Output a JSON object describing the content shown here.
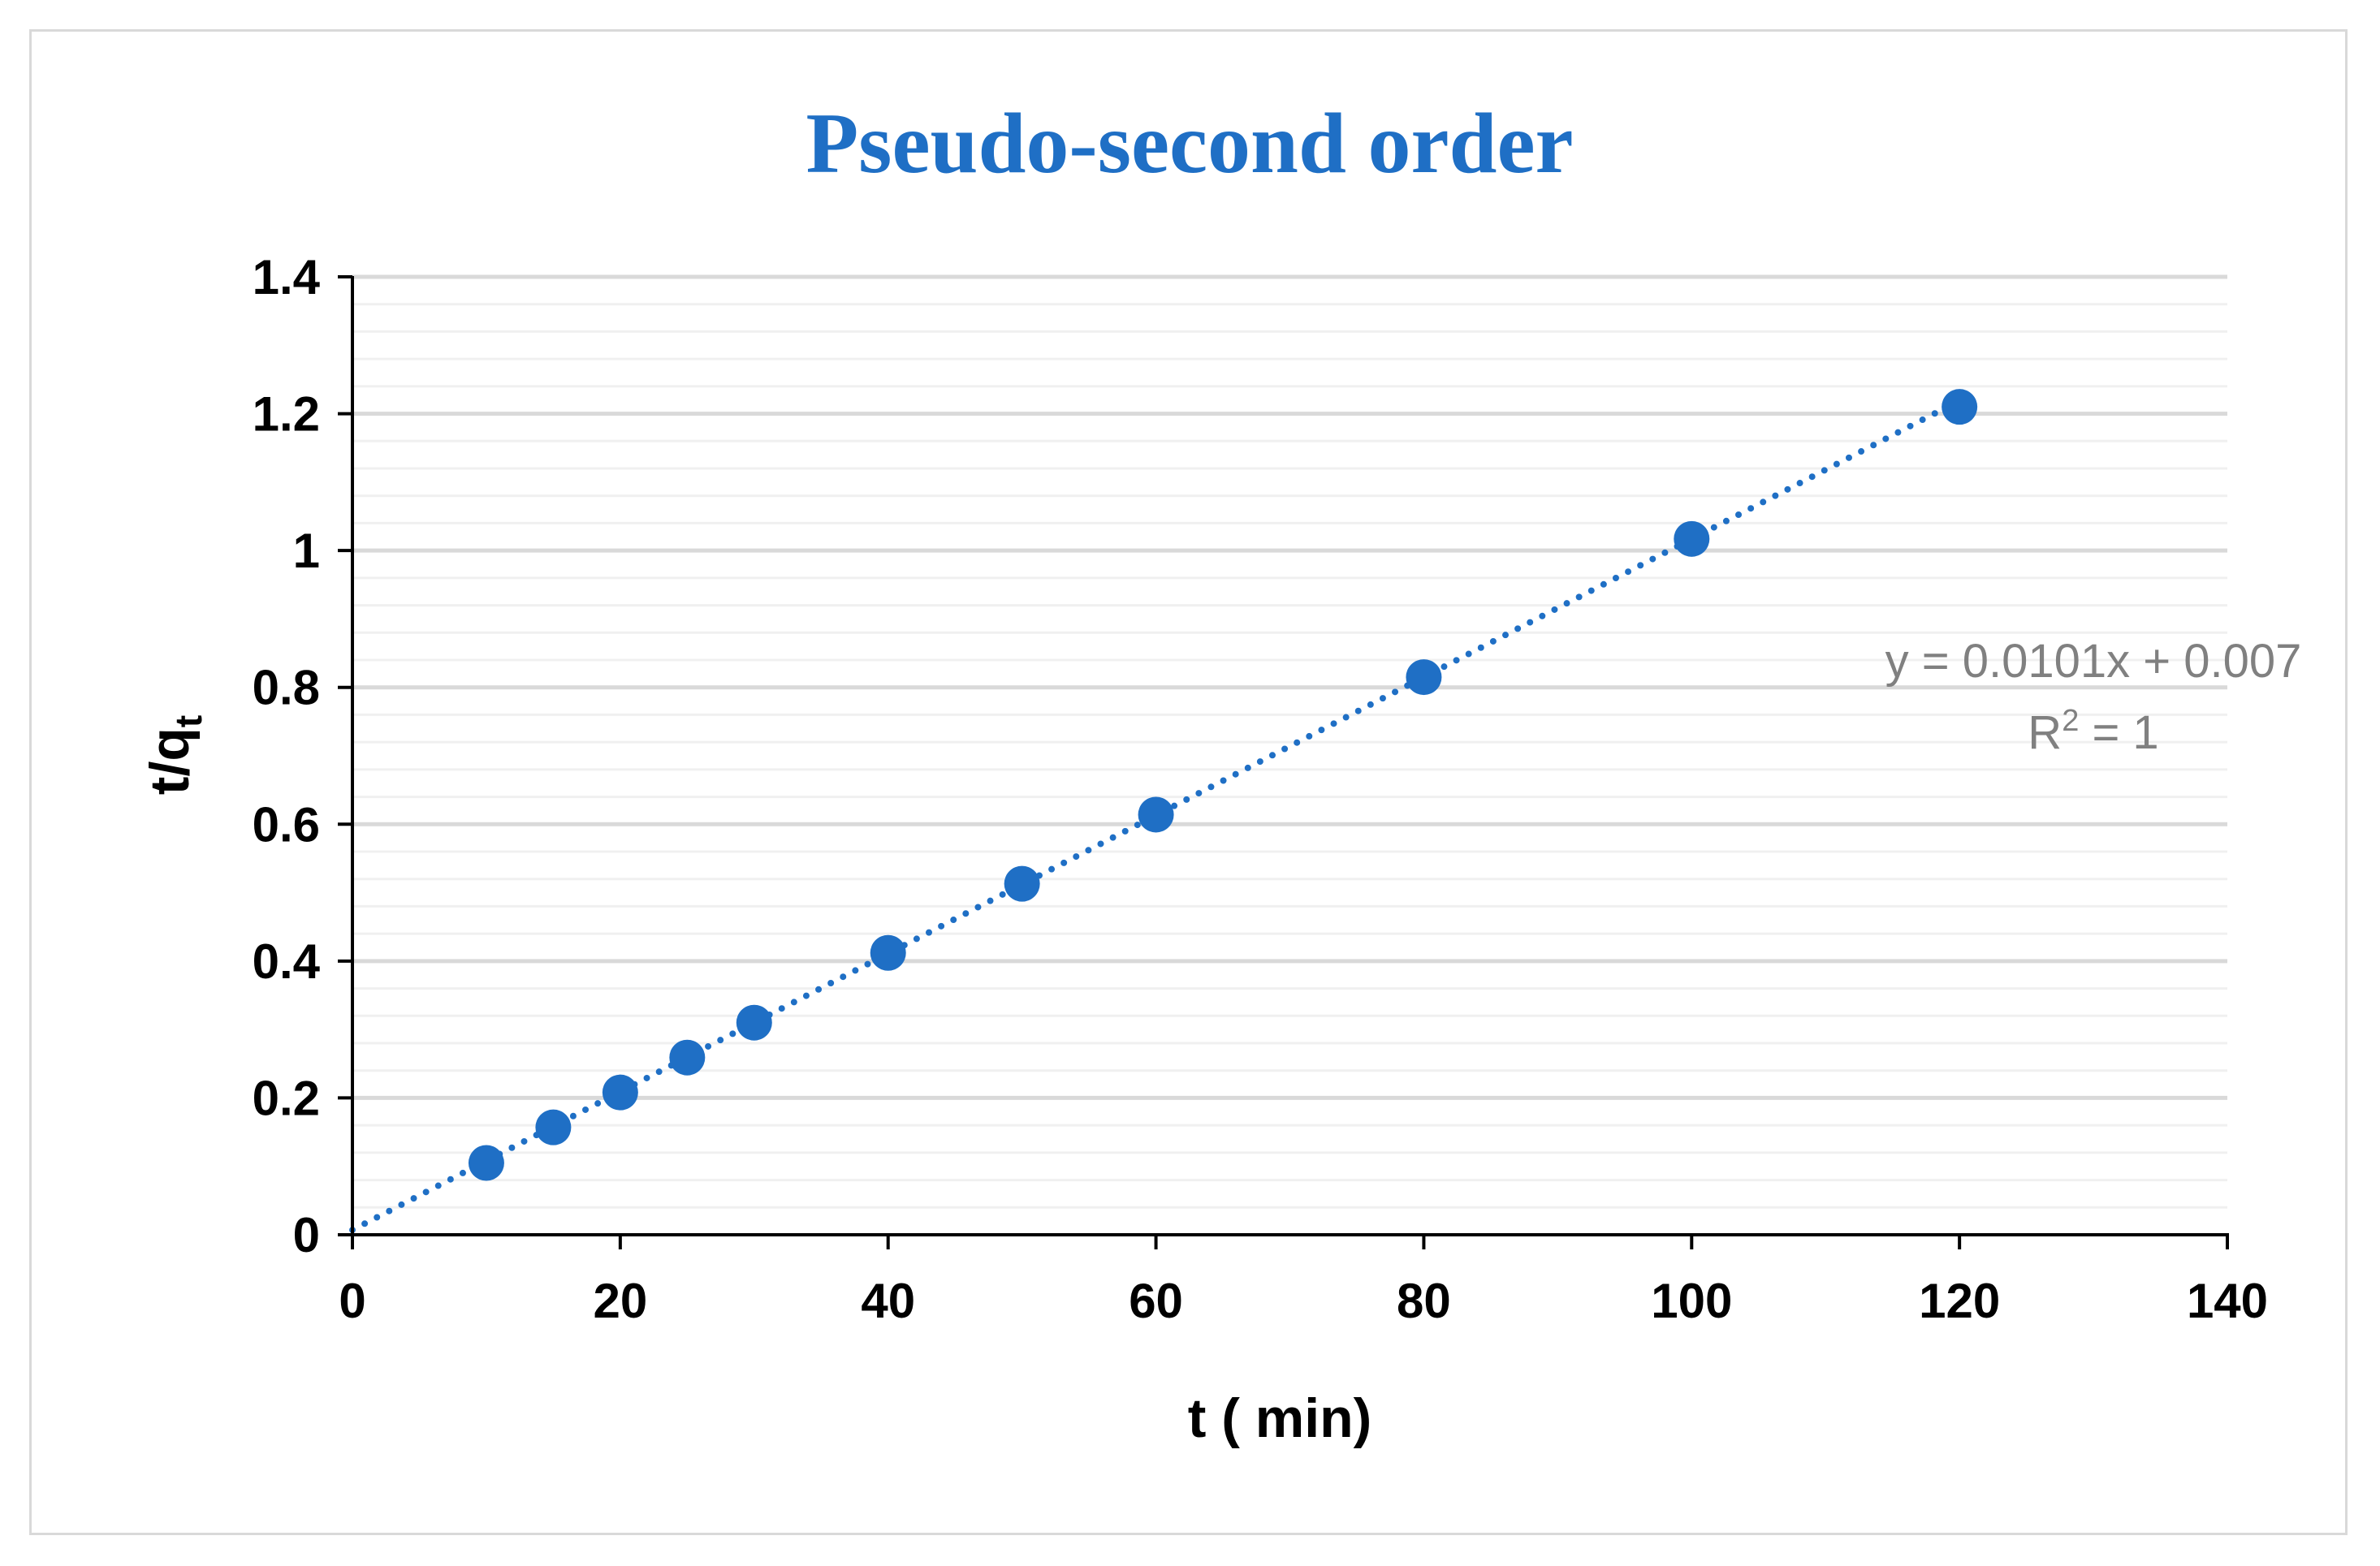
{
  "chart_data": {
    "type": "scatter",
    "title": "Pseudo-second order",
    "xlabel": "t ( min)",
    "ylabel_main": "t/q",
    "ylabel_sub": "t",
    "xlim": [
      0,
      140
    ],
    "ylim": [
      0,
      1.4
    ],
    "x_ticks": [
      "0",
      "20",
      "40",
      "60",
      "80",
      "100",
      "120",
      "140"
    ],
    "y_ticks": [
      "0",
      "0.2",
      "0.4",
      "0.6",
      "0.8",
      "1",
      "1.2",
      "1.4"
    ],
    "grid": true,
    "legend": "none",
    "series": [
      {
        "x": [
          10,
          15,
          20,
          25,
          30,
          40,
          50,
          60,
          80,
          100,
          120
        ],
        "y": [
          0.105,
          0.157,
          0.208,
          0.259,
          0.31,
          0.412,
          0.513,
          0.614,
          0.815,
          1.017,
          1.21
        ]
      }
    ],
    "trendline": {
      "type": "linear",
      "slope": 0.0101,
      "intercept": 0.007,
      "x_range": [
        0,
        120
      ],
      "equation_text": "y = 0.0101x + 0.007",
      "r2_label": "R",
      "r2_sup": "2",
      "r2_value": " = 1"
    },
    "colors": {
      "title": "#1f6fc5",
      "marker": "#1f6fc5",
      "trendline": "#1f6fc5",
      "major_grid": "#d9d9d9",
      "minor_grid": "#f0f0f0",
      "axis": "#000000",
      "equation": "#808080"
    }
  }
}
